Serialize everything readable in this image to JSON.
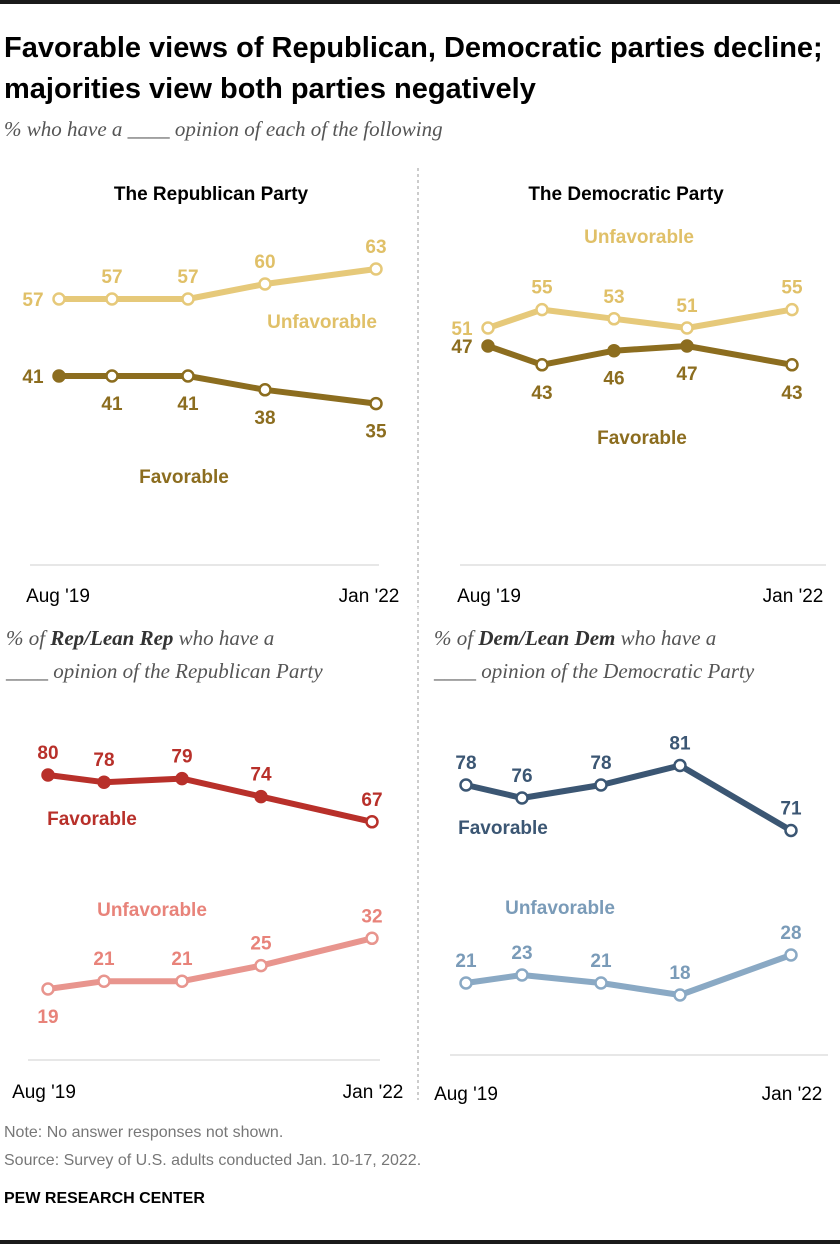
{
  "title": "Favorable views of Republican, Democratic parties decline; majorities view both parties negatively",
  "subtitle": "% who have a ____ opinion of each of the following",
  "panels": [
    {
      "id": "rep-all",
      "panel_title": "The Republican Party",
      "subhead": null,
      "x_start_label": "Aug '19",
      "x_end_label": "Jan '22",
      "series": [
        {
          "name": "Unfavorable",
          "color": "#e6c97a",
          "label_color": "#e0c068",
          "values": [
            57,
            57,
            57,
            60,
            63
          ],
          "filled": []
        },
        {
          "name": "Favorable",
          "color": "#8c6d1f",
          "label_color": "#8c6d1f",
          "values": [
            41,
            41,
            41,
            38,
            35
          ],
          "filled": [
            0
          ]
        }
      ]
    },
    {
      "id": "dem-all",
      "panel_title": "The Democratic Party",
      "subhead": null,
      "x_start_label": "Aug '19",
      "x_end_label": "Jan '22",
      "series": [
        {
          "name": "Unfavorable",
          "color": "#e6c97a",
          "label_color": "#e0c068",
          "values": [
            51,
            55,
            53,
            51,
            55
          ],
          "filled": []
        },
        {
          "name": "Favorable",
          "color": "#8c6d1f",
          "label_color": "#8c6d1f",
          "values": [
            47,
            43,
            46,
            47,
            43
          ],
          "filled": [
            0,
            2,
            3
          ]
        }
      ]
    },
    {
      "id": "rep-partisans",
      "panel_title": null,
      "subhead": {
        "prefix": "% of ",
        "bold": "Rep/Lean Rep",
        "suffix": " who have a",
        "line2": "____ opinion of the Republican Party"
      },
      "x_start_label": "Aug '19",
      "x_end_label": "Jan '22",
      "series": [
        {
          "name": "Favorable",
          "color": "#b8302a",
          "label_color": "#b8302a",
          "values": [
            80,
            78,
            79,
            74,
            67
          ],
          "filled": [
            0,
            1,
            2,
            3
          ]
        },
        {
          "name": "Unfavorable",
          "color": "#e8958e",
          "label_color": "#e8837a",
          "values": [
            19,
            21,
            21,
            25,
            32
          ],
          "filled": []
        }
      ]
    },
    {
      "id": "dem-partisans",
      "panel_title": null,
      "subhead": {
        "prefix": "% of ",
        "bold": "Dem/Lean Dem",
        "suffix": " who have a",
        "line2": "____ opinion of the Democratic Party"
      },
      "x_start_label": "Aug '19",
      "x_end_label": "Jan '22",
      "series": [
        {
          "name": "Favorable",
          "color": "#3b5673",
          "label_color": "#3b5673",
          "values": [
            78,
            76,
            78,
            81,
            71
          ],
          "filled": []
        },
        {
          "name": "Unfavorable",
          "color": "#8aa9c4",
          "label_color": "#7a9bb8",
          "values": [
            21,
            23,
            21,
            18,
            28
          ],
          "filled": []
        }
      ]
    }
  ],
  "chart_data": [
    {
      "type": "line",
      "title": "The Republican Party",
      "x": [
        "Aug '19",
        "",
        "",
        "",
        "Jan '22"
      ],
      "series": [
        {
          "name": "Unfavorable",
          "values": [
            57,
            57,
            57,
            60,
            63
          ]
        },
        {
          "name": "Favorable",
          "values": [
            41,
            41,
            41,
            38,
            35
          ]
        }
      ]
    },
    {
      "type": "line",
      "title": "The Democratic Party",
      "x": [
        "Aug '19",
        "",
        "",
        "",
        "Jan '22"
      ],
      "series": [
        {
          "name": "Unfavorable",
          "values": [
            51,
            55,
            53,
            51,
            55
          ]
        },
        {
          "name": "Favorable",
          "values": [
            47,
            43,
            46,
            47,
            43
          ]
        }
      ]
    },
    {
      "type": "line",
      "title": "% of Rep/Lean Rep who have a ____ opinion of the Republican Party",
      "x": [
        "Aug '19",
        "",
        "",
        "",
        "Jan '22"
      ],
      "series": [
        {
          "name": "Favorable",
          "values": [
            80,
            78,
            79,
            74,
            67
          ]
        },
        {
          "name": "Unfavorable",
          "values": [
            19,
            21,
            21,
            25,
            32
          ]
        }
      ]
    },
    {
      "type": "line",
      "title": "% of Dem/Lean Dem who have a ____ opinion of the Democratic Party",
      "x": [
        "Aug '19",
        "",
        "",
        "",
        "Jan '22"
      ],
      "series": [
        {
          "name": "Favorable",
          "values": [
            78,
            76,
            78,
            81,
            71
          ]
        },
        {
          "name": "Unfavorable",
          "values": [
            21,
            23,
            21,
            18,
            28
          ]
        }
      ]
    }
  ],
  "note": "Note: No answer responses not shown.",
  "source": "Source: Survey of U.S. adults conducted Jan. 10-17, 2022.",
  "brand": "PEW RESEARCH CENTER"
}
